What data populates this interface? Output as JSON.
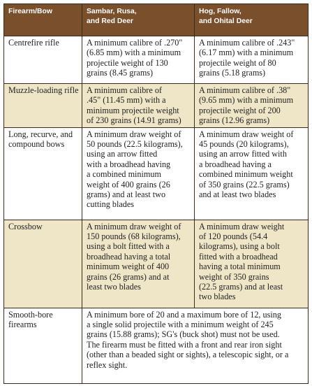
{
  "table": {
    "headers": [
      [
        "Firearm/Bow"
      ],
      [
        "Sambar, Rusa,",
        "and Red Deer"
      ],
      [
        "Hog, Fallow,",
        "and Ohital Deer"
      ]
    ],
    "rows": [
      {
        "type": [
          "Centrefire rifle"
        ],
        "sambar": [
          "A minimum calibre of .270\"",
          "(6.85 mm) with a minimum",
          "projectile weight of 130",
          "grains (8.45 grams)"
        ],
        "hog": [
          "A minimum calibre of .243\"",
          "(6.17 mm) with a minimum",
          "projectile weight of 80",
          "grains (5.18 grams)"
        ]
      },
      {
        "type": [
          "Muzzle-loading rifle"
        ],
        "sambar": [
          "A minimum calibre of",
          ".45\" (11.45 mm) with a",
          "minimum projectile weight",
          "of 230 grains (14.91 grams)"
        ],
        "hog": [
          "A minimum calibre of .38\"",
          "(9.65 mm) with a minimum",
          "projectile weight of 200",
          "grains (12.96 grams)"
        ]
      },
      {
        "type": [
          "Long, recurve, and",
          "compound bows"
        ],
        "sambar": [
          "A minimum draw weight of",
          "50 pounds (22.5 kilograms),",
          "using an arrow fitted",
          "with a broadhead having",
          "a combined minimum",
          "weight of 400 grains (26",
          "grams) and at least two",
          "cutting blades"
        ],
        "hog": [
          "A minimum draw weight of",
          "45 pounds (20 kilograms),",
          "using an arrow fitted with",
          "a broadhead having a",
          "combined minimum weight",
          "of 350 grains (22.5 grams)",
          "and at least two blades"
        ]
      },
      {
        "type": [
          "Crossbow"
        ],
        "sambar": [
          "A minimum draw weight of",
          "150 pounds (68 kilograms),",
          "using a bolt fitted with a",
          "broadhead having a total",
          "minimum weight of 400",
          "grains (26 grams) and at",
          "least two blades"
        ],
        "hog": [
          "A minimum draw weight",
          "of 120 pounds (54.4",
          "kilograms), using a bolt",
          "fitted with a broadhead",
          "having a total minimum",
          "weight of 350 grains",
          "(22.5 grams) and at least",
          "two blades"
        ]
      },
      {
        "type": [
          "Smooth-bore",
          "firearms"
        ],
        "combined": [
          "A minimum bore of 20 and a maximum bore of 12, using",
          "a single solid projectile with a minimum weight of 245",
          "grains (15.88 grams); SG's (buck shot) must not be used.",
          "The firearm must be fitted with a front and rear iron sight",
          "(other than a beaded sight or sights), a telescopic sight, or a",
          "reflex sight."
        ]
      }
    ]
  }
}
